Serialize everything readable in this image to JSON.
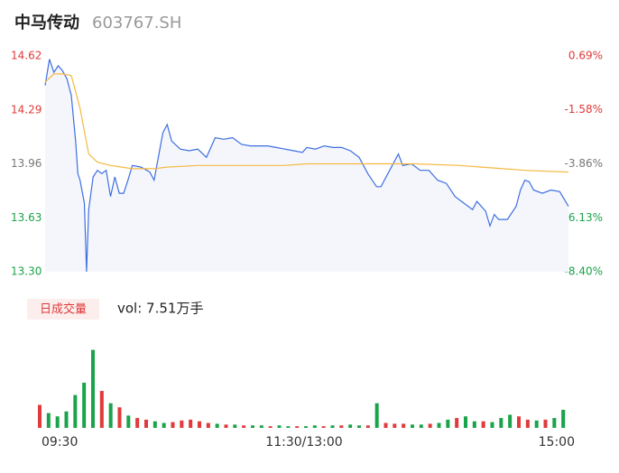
{
  "header": {
    "name": "中马传动",
    "code": "603767.SH"
  },
  "chart_data": [
    {
      "type": "line",
      "xlim": [
        0,
        240
      ],
      "ylim": [
        13.3,
        14.62
      ],
      "yticks": [
        {
          "value": 14.62,
          "label": "14.62"
        },
        14.29,
        13.96,
        13.63,
        {
          "value": 13.3,
          "label": "13.30"
        }
      ],
      "ytick_colors": [
        "#e03a3a",
        "#e03a3a",
        "#777777",
        "#1aa34a",
        "#1aa34a"
      ],
      "y2lim": [
        -8.4,
        0.69
      ],
      "y2ticks": [
        {
          "value": 0.69,
          "label": "0.69%"
        },
        {
          "value": -1.58,
          "label": "-1.58%"
        },
        {
          "value": -3.86,
          "label": "-3.86%"
        },
        {
          "value": -6.13,
          "label": "-6.13%"
        },
        {
          "value": -8.4,
          "label": "-8.40%"
        }
      ],
      "area_color": "#f4f6fc",
      "series": [
        {
          "color": "#3d6fe0",
          "x": [
            0,
            2,
            4,
            6,
            8,
            10,
            12,
            14,
            15,
            16,
            18,
            19,
            20,
            22,
            24,
            26,
            28,
            30,
            32,
            34,
            36,
            38,
            40,
            44,
            48,
            50,
            54,
            56,
            58,
            62,
            66,
            70,
            74,
            78,
            82,
            86,
            90,
            94,
            98,
            102,
            106,
            110,
            114,
            118,
            120,
            124,
            128,
            132,
            136,
            140,
            144,
            148,
            152,
            154,
            158,
            162,
            164,
            168,
            172,
            176,
            180,
            184,
            188,
            192,
            196,
            198,
            202,
            204,
            206,
            208,
            212,
            216,
            218,
            220,
            222,
            224,
            228,
            232,
            236,
            240
          ],
          "values": [
            14.44,
            14.6,
            14.52,
            14.56,
            14.53,
            14.48,
            14.38,
            14.1,
            13.9,
            13.86,
            13.72,
            13.3,
            13.68,
            13.88,
            13.92,
            13.9,
            13.92,
            13.76,
            13.88,
            13.78,
            13.78,
            13.86,
            13.95,
            13.94,
            13.91,
            13.86,
            14.15,
            14.2,
            14.1,
            14.05,
            14.04,
            14.05,
            14.0,
            14.12,
            14.11,
            14.12,
            14.08,
            14.07,
            14.07,
            14.07,
            14.06,
            14.05,
            14.04,
            14.03,
            14.06,
            14.05,
            14.07,
            14.06,
            14.06,
            14.04,
            14.0,
            13.9,
            13.82,
            13.82,
            13.92,
            14.02,
            13.95,
            13.96,
            13.92,
            13.92,
            13.86,
            13.84,
            13.76,
            13.72,
            13.68,
            13.73,
            13.67,
            13.58,
            13.65,
            13.62,
            13.62,
            13.7,
            13.8,
            13.86,
            13.85,
            13.8,
            13.78,
            13.8,
            13.79,
            13.7
          ]
        },
        {
          "color": "#f5b942",
          "x": [
            0,
            4,
            8,
            12,
            16,
            20,
            24,
            30,
            40,
            50,
            56,
            70,
            90,
            110,
            120,
            150,
            170,
            190,
            200,
            210,
            220,
            240
          ],
          "values": [
            14.46,
            14.51,
            14.51,
            14.5,
            14.3,
            14.02,
            13.97,
            13.95,
            13.93,
            13.93,
            13.94,
            13.95,
            13.95,
            13.95,
            13.96,
            13.96,
            13.96,
            13.95,
            13.94,
            13.93,
            13.92,
            13.91
          ]
        }
      ]
    },
    {
      "type": "bar",
      "label": "日成交量",
      "vol_text": "vol: 7.51万手",
      "xlim": [
        0,
        240
      ],
      "xticks": [
        {
          "value": 0,
          "label": "09:30"
        },
        {
          "value": 120,
          "label": "11:30/13:00"
        },
        {
          "value": 240,
          "label": "15:00"
        }
      ],
      "ylim": [
        0,
        100
      ],
      "x": [
        0,
        4,
        8,
        12,
        16,
        20,
        24,
        28,
        32,
        36,
        40,
        44,
        48,
        52,
        56,
        60,
        64,
        68,
        72,
        76,
        80,
        84,
        88,
        92,
        96,
        100,
        104,
        108,
        112,
        116,
        120,
        124,
        128,
        132,
        136,
        140,
        144,
        148,
        152,
        156,
        160,
        164,
        168,
        172,
        176,
        180,
        184,
        188,
        192,
        196,
        200,
        204,
        208,
        212,
        216,
        220,
        224,
        228,
        232,
        236
      ],
      "values": [
        28,
        18,
        14,
        20,
        40,
        55,
        95,
        45,
        30,
        25,
        15,
        12,
        10,
        8,
        6,
        7,
        9,
        10,
        8,
        6,
        5,
        4,
        4,
        3,
        3,
        3,
        2,
        3,
        2,
        2,
        2,
        3,
        2,
        3,
        3,
        4,
        3,
        3,
        30,
        6,
        5,
        5,
        4,
        4,
        5,
        6,
        10,
        12,
        14,
        8,
        8,
        7,
        12,
        16,
        14,
        10,
        9,
        10,
        12,
        22
      ],
      "colors": [
        "#e03a3a",
        "#1aa34a",
        "#1aa34a",
        "#1aa34a",
        "#1aa34a",
        "#1aa34a",
        "#1aa34a",
        "#e03a3a",
        "#1aa34a",
        "#e03a3a",
        "#1aa34a",
        "#e03a3a",
        "#e03a3a",
        "#1aa34a",
        "#1aa34a",
        "#e03a3a",
        "#e03a3a",
        "#e03a3a",
        "#e03a3a",
        "#e03a3a",
        "#1aa34a",
        "#e03a3a",
        "#1aa34a",
        "#e03a3a",
        "#1aa34a",
        "#1aa34a",
        "#e03a3a",
        "#1aa34a",
        "#1aa34a",
        "#e03a3a",
        "#1aa34a",
        "#1aa34a",
        "#e03a3a",
        "#1aa34a",
        "#e03a3a",
        "#1aa34a",
        "#1aa34a",
        "#e03a3a",
        "#1aa34a",
        "#e03a3a",
        "#e03a3a",
        "#e03a3a",
        "#1aa34a",
        "#1aa34a",
        "#e03a3a",
        "#1aa34a",
        "#1aa34a",
        "#e03a3a",
        "#1aa34a",
        "#1aa34a",
        "#e03a3a",
        "#1aa34a",
        "#1aa34a",
        "#1aa34a",
        "#e03a3a",
        "#e03a3a",
        "#1aa34a",
        "#e03a3a",
        "#1aa34a",
        "#1aa34a"
      ]
    }
  ]
}
